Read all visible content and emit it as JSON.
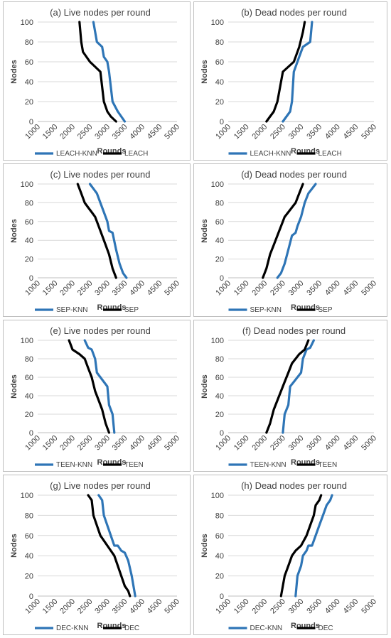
{
  "colors": {
    "knn": "#2e75b6",
    "base": "#000000",
    "grid": "#d9d9d9"
  },
  "chart_data": [
    {
      "type": "line",
      "title": "(a) Live nodes per round",
      "xlabel": "Rounds",
      "ylabel": "Nodes",
      "xlim": [
        1000,
        5000
      ],
      "ylim": [
        0,
        100
      ],
      "x_ticks": [
        "1000",
        "1500",
        "2000",
        "2500",
        "3000",
        "3500",
        "4000",
        "4500",
        "5000"
      ],
      "y_ticks": [
        "0",
        "20",
        "40",
        "60",
        "80",
        "100"
      ],
      "legend": "bottom",
      "grid": "horizontal",
      "series": [
        {
          "name": "LEACH-KNN",
          "color": "knn",
          "x": [
            2600,
            2700,
            2850,
            2900,
            3000,
            3050,
            3150,
            3300,
            3400,
            3500
          ],
          "y": [
            100,
            80,
            75,
            65,
            60,
            50,
            20,
            10,
            5,
            0
          ]
        },
        {
          "name": "LEACH",
          "color": "base",
          "x": [
            2200,
            2250,
            2300,
            2400,
            2500,
            2800,
            2900,
            3000,
            3100,
            3250
          ],
          "y": [
            100,
            80,
            70,
            65,
            60,
            50,
            20,
            10,
            5,
            0
          ]
        }
      ]
    },
    {
      "type": "line",
      "title": "(b) Dead nodes per round",
      "xlabel": "Rounds",
      "ylabel": "Nodes",
      "xlim": [
        1000,
        5000
      ],
      "ylim": [
        0,
        100
      ],
      "x_ticks": [
        "1000",
        "1500",
        "2000",
        "2500",
        "3000",
        "3500",
        "4000",
        "4500",
        "5000"
      ],
      "y_ticks": [
        "0",
        "20",
        "40",
        "60",
        "80",
        "100"
      ],
      "legend": "bottom",
      "grid": "horizontal",
      "series": [
        {
          "name": "LEACH-KNN",
          "color": "knn",
          "x": [
            2500,
            2600,
            2700,
            2750,
            2800,
            2900,
            2950,
            3050,
            3250,
            3300
          ],
          "y": [
            0,
            5,
            10,
            20,
            50,
            60,
            65,
            75,
            80,
            100
          ]
        },
        {
          "name": "LEACH",
          "color": "base",
          "x": [
            2050,
            2150,
            2250,
            2350,
            2500,
            2800,
            2900,
            2950,
            3050,
            3100
          ],
          "y": [
            0,
            5,
            10,
            20,
            50,
            60,
            70,
            75,
            90,
            100
          ]
        }
      ]
    },
    {
      "type": "line",
      "title": "(c) Live nodes per round",
      "xlabel": "Rounds",
      "ylabel": "Nodes",
      "xlim": [
        1000,
        5000
      ],
      "ylim": [
        0,
        100
      ],
      "x_ticks": [
        "1000",
        "1500",
        "2000",
        "2500",
        "3000",
        "3500",
        "4000",
        "4500",
        "5000"
      ],
      "y_ticks": [
        "0",
        "20",
        "40",
        "60",
        "80",
        "100"
      ],
      "legend": "bottom",
      "grid": "horizontal",
      "series": [
        {
          "name": "SEP-KNN",
          "color": "knn",
          "x": [
            2500,
            2600,
            2700,
            2800,
            2900,
            3000,
            3050,
            3150,
            3250,
            3350,
            3450,
            3550
          ],
          "y": [
            100,
            95,
            90,
            80,
            70,
            60,
            50,
            48,
            30,
            15,
            5,
            0
          ]
        },
        {
          "name": "SEP",
          "color": "base",
          "x": [
            2150,
            2250,
            2350,
            2450,
            2550,
            2650,
            2750,
            2850,
            2950,
            3050,
            3150,
            3250
          ],
          "y": [
            100,
            90,
            80,
            75,
            70,
            65,
            55,
            45,
            35,
            25,
            10,
            0
          ]
        }
      ]
    },
    {
      "type": "line",
      "title": "(d) Dead nodes per round",
      "xlabel": "Rounds",
      "ylabel": "Nodes",
      "xlim": [
        1000,
        5000
      ],
      "ylim": [
        0,
        100
      ],
      "x_ticks": [
        "1000",
        "1500",
        "2000",
        "2500",
        "3000",
        "3500",
        "4000",
        "4500",
        "5000"
      ],
      "y_ticks": [
        "0",
        "20",
        "40",
        "60",
        "80",
        "100"
      ],
      "legend": "bottom",
      "grid": "horizontal",
      "series": [
        {
          "name": "SEP-KNN",
          "color": "knn",
          "x": [
            2350,
            2450,
            2550,
            2650,
            2750,
            2850,
            2900,
            3000,
            3100,
            3200,
            3300,
            3400
          ],
          "y": [
            0,
            5,
            15,
            30,
            45,
            48,
            55,
            65,
            80,
            90,
            95,
            100
          ]
        },
        {
          "name": "SEP",
          "color": "base",
          "x": [
            1950,
            2050,
            2150,
            2250,
            2350,
            2450,
            2550,
            2650,
            2750,
            2850,
            2950,
            3050
          ],
          "y": [
            0,
            10,
            25,
            35,
            45,
            55,
            65,
            70,
            75,
            80,
            90,
            100
          ]
        }
      ]
    },
    {
      "type": "line",
      "title": "(e) Live nodes per round",
      "xlabel": "Rounds",
      "ylabel": "Nodes",
      "xlim": [
        1000,
        5000
      ],
      "ylim": [
        0,
        100
      ],
      "x_ticks": [
        "1000",
        "1500",
        "2000",
        "2500",
        "3000",
        "3500",
        "4000",
        "4500",
        "5000"
      ],
      "y_ticks": [
        "0",
        "20",
        "40",
        "60",
        "80",
        "100"
      ],
      "legend": "bottom",
      "grid": "horizontal",
      "series": [
        {
          "name": "TEEN-KNN",
          "color": "knn",
          "x": [
            2350,
            2450,
            2550,
            2650,
            2700,
            2800,
            2900,
            3000,
            3050,
            3150,
            3200
          ],
          "y": [
            100,
            92,
            90,
            80,
            65,
            60,
            55,
            50,
            30,
            20,
            0
          ]
        },
        {
          "name": "TEEN",
          "color": "base",
          "x": [
            1900,
            2000,
            2200,
            2350,
            2450,
            2550,
            2650,
            2750,
            2850,
            2950,
            3050
          ],
          "y": [
            100,
            90,
            85,
            80,
            70,
            60,
            45,
            35,
            25,
            10,
            0
          ]
        }
      ]
    },
    {
      "type": "line",
      "title": "(f) Dead nodes per round",
      "xlabel": "Rounds",
      "ylabel": "Nodes",
      "xlim": [
        1000,
        5000
      ],
      "ylim": [
        0,
        100
      ],
      "x_ticks": [
        "1000",
        "1500",
        "2000",
        "2500",
        "3000",
        "3500",
        "4000",
        "4500",
        "5000"
      ],
      "y_ticks": [
        "0",
        "20",
        "40",
        "60",
        "80",
        "100"
      ],
      "legend": "bottom",
      "grid": "horizontal",
      "series": [
        {
          "name": "TEEN-KNN",
          "color": "knn",
          "x": [
            2500,
            2550,
            2650,
            2700,
            2800,
            2900,
            3000,
            3050,
            3150,
            3250,
            3350
          ],
          "y": [
            0,
            20,
            30,
            50,
            55,
            60,
            65,
            80,
            90,
            92,
            100
          ]
        },
        {
          "name": "TEEN",
          "color": "base",
          "x": [
            2050,
            2150,
            2250,
            2350,
            2450,
            2550,
            2650,
            2750,
            2950,
            3100,
            3200
          ],
          "y": [
            0,
            10,
            25,
            35,
            45,
            55,
            65,
            75,
            85,
            90,
            100
          ]
        }
      ]
    },
    {
      "type": "line",
      "title": "(g) Live nodes per round",
      "xlabel": "Rounds",
      "ylabel": "Nodes",
      "xlim": [
        1000,
        5000
      ],
      "ylim": [
        0,
        100
      ],
      "x_ticks": [
        "1000",
        "1500",
        "2000",
        "2500",
        "3000",
        "3500",
        "4000",
        "4500",
        "5000"
      ],
      "y_ticks": [
        "0",
        "20",
        "40",
        "60",
        "80",
        "100"
      ],
      "legend": "bottom",
      "grid": "horizontal",
      "series": [
        {
          "name": "DEC-KNN",
          "color": "knn",
          "x": [
            2750,
            2850,
            2900,
            3000,
            3100,
            3200,
            3300,
            3400,
            3500,
            3600,
            3700,
            3800
          ],
          "y": [
            100,
            95,
            80,
            70,
            60,
            50,
            50,
            45,
            43,
            35,
            20,
            0
          ]
        },
        {
          "name": "DEC",
          "color": "base",
          "x": [
            2450,
            2550,
            2600,
            2700,
            2800,
            3000,
            3200,
            3300,
            3400,
            3500,
            3600,
            3650
          ],
          "y": [
            100,
            95,
            80,
            70,
            60,
            50,
            40,
            30,
            20,
            10,
            5,
            0
          ]
        }
      ]
    },
    {
      "type": "line",
      "title": "(h) Dead nodes per round",
      "xlabel": "Rounds",
      "ylabel": "Nodes",
      "xlim": [
        1000,
        5000
      ],
      "ylim": [
        0,
        100
      ],
      "x_ticks": [
        "1000",
        "1500",
        "2000",
        "2500",
        "3000",
        "3500",
        "4000",
        "4500",
        "5000"
      ],
      "y_ticks": [
        "0",
        "20",
        "40",
        "60",
        "80",
        "100"
      ],
      "legend": "bottom",
      "grid": "horizontal",
      "series": [
        {
          "name": "DEC-KNN",
          "color": "knn",
          "x": [
            2850,
            2900,
            3000,
            3050,
            3150,
            3200,
            3300,
            3400,
            3500,
            3600,
            3700,
            3800,
            3850
          ],
          "y": [
            0,
            20,
            30,
            40,
            45,
            50,
            50,
            60,
            70,
            80,
            90,
            95,
            100
          ]
        },
        {
          "name": "DEC",
          "color": "base",
          "x": [
            2450,
            2550,
            2650,
            2750,
            2850,
            3000,
            3150,
            3250,
            3350,
            3400,
            3500,
            3550
          ],
          "y": [
            0,
            20,
            30,
            40,
            45,
            50,
            60,
            70,
            80,
            90,
            95,
            100
          ]
        }
      ]
    }
  ]
}
